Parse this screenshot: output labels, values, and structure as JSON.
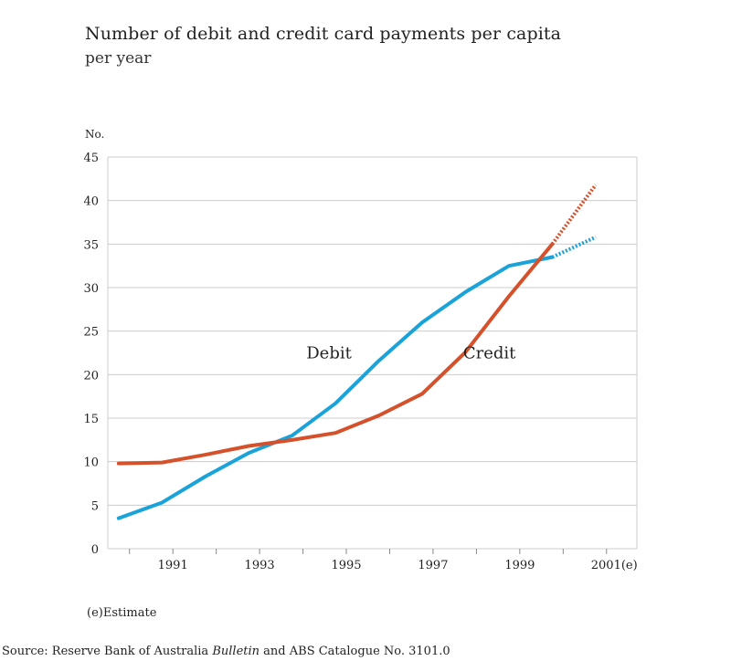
{
  "header": {
    "title": "Number of debit and credit card payments per capita",
    "subtitle": "per year"
  },
  "chart_data": {
    "type": "line",
    "title": "Number of debit and credit card payments per capita",
    "subtitle": "per year",
    "ylabel": "No.",
    "xlabel": "",
    "ylim": [
      0,
      45
    ],
    "xlim": [
      1989.5,
      2001.7
    ],
    "yticks": [
      0,
      5,
      10,
      15,
      20,
      25,
      30,
      35,
      40,
      45
    ],
    "xtick_values": [
      1991,
      1993,
      1995,
      1997,
      1999,
      2001
    ],
    "xtick_labels": [
      "1991",
      "1993",
      "1995",
      "1997",
      "1999",
      "2001(e)"
    ],
    "grid": true,
    "colors": {
      "debit": "#1aa3d9",
      "credit": "#d5512c",
      "grid": "#cccccc"
    },
    "series": [
      {
        "name": "Debit",
        "x": [
          1989.75,
          1990.75,
          1991.75,
          1992.75,
          1993.75,
          1994.75,
          1995.75,
          1996.75,
          1997.75,
          1998.75,
          1999.75
        ],
        "values": [
          3.5,
          5.3,
          8.3,
          11.0,
          13.0,
          16.7,
          21.6,
          26.0,
          29.5,
          32.5,
          33.5
        ],
        "estimate_x": [
          1999.75,
          2000.75
        ],
        "estimate_values": [
          33.5,
          35.8
        ]
      },
      {
        "name": "Credit",
        "x": [
          1989.75,
          1990.75,
          1991.75,
          1992.75,
          1993.75,
          1994.75,
          1995.75,
          1996.75,
          1997.75,
          1998.75,
          1999.75
        ],
        "values": [
          9.8,
          9.9,
          10.8,
          11.8,
          12.5,
          13.3,
          15.3,
          17.8,
          22.6,
          29.0,
          35.0
        ],
        "estimate_x": [
          1999.75,
          2000.75
        ],
        "estimate_values": [
          35.0,
          41.8
        ]
      }
    ],
    "labels": [
      {
        "text": "Debit",
        "x": 1994.6,
        "y": 22.5
      },
      {
        "text": "Credit",
        "x": 1998.3,
        "y": 22.5
      }
    ]
  },
  "footnote": {
    "label": "(e)",
    "text": "Estimate"
  },
  "source": {
    "prefix": "Source: Reserve Bank of Australia",
    "publication": "Bulletin",
    "suffix": "and ABS Catalogue No. 3101.0"
  }
}
